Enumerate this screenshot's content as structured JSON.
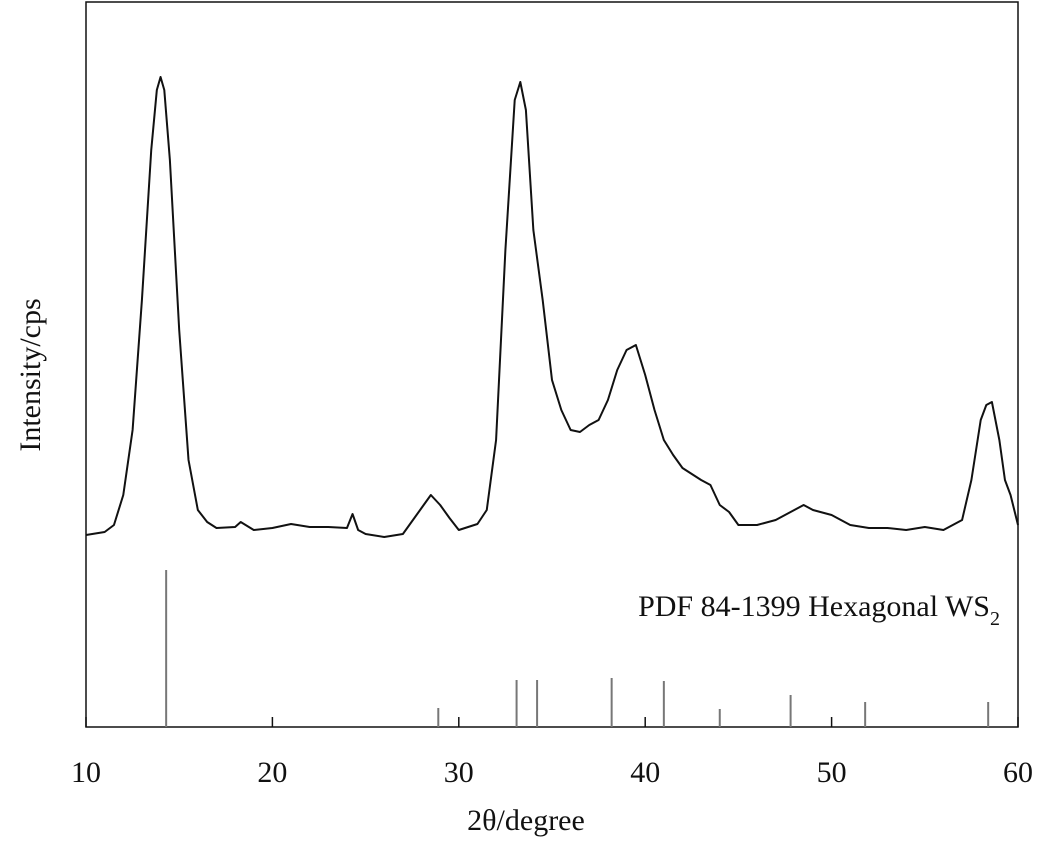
{
  "chart_data": {
    "type": "line",
    "xlabel": "2θ/degree",
    "ylabel": "Intensity/cps",
    "annotation": {
      "text": "PDF 84-1399 Hexagonal WS",
      "subscript": "2"
    },
    "xlim": [
      10,
      60
    ],
    "xticks": [
      10,
      20,
      30,
      40,
      50,
      60
    ],
    "ylim": [
      0,
      725
    ],
    "series": [
      {
        "type": "line",
        "color": "#111111",
        "x": [
          10,
          11,
          11.5,
          12,
          12.5,
          13,
          13.5,
          13.8,
          14,
          14.2,
          14.5,
          15,
          15.5,
          16,
          16.5,
          17,
          18,
          18.3,
          19,
          20,
          21,
          22,
          23,
          24,
          24.3,
          24.6,
          25,
          26,
          27,
          28,
          28.5,
          29,
          29.5,
          30,
          31,
          31.5,
          32,
          32.5,
          33,
          33.3,
          33.6,
          34,
          34.5,
          35,
          35.5,
          36,
          36.5,
          37,
          37.5,
          38,
          38.5,
          39,
          39.5,
          40,
          40.5,
          41,
          41.5,
          42,
          43,
          43.5,
          44,
          44.5,
          45,
          46,
          47,
          48,
          48.5,
          49,
          50,
          51,
          52,
          53,
          54,
          55,
          56,
          57,
          57.5,
          58,
          58.3,
          58.6,
          59,
          59.3,
          59.6,
          60
        ],
        "values": [
          192,
          195,
          202,
          232,
          297,
          427,
          577,
          637,
          650,
          637,
          567,
          397,
          267,
          217,
          205,
          199,
          200,
          205,
          197,
          199,
          203,
          200,
          200,
          199,
          213,
          197,
          193,
          190,
          193,
          219,
          232,
          222,
          209,
          197,
          203,
          217,
          287,
          477,
          627,
          645,
          617,
          497,
          427,
          347,
          317,
          297,
          295,
          302,
          307,
          327,
          357,
          377,
          382,
          352,
          317,
          287,
          272,
          259,
          247,
          242,
          222,
          215,
          202,
          202,
          207,
          217,
          222,
          217,
          212,
          202,
          199,
          199,
          197,
          200,
          197,
          207,
          247,
          307,
          322,
          325,
          287,
          247,
          232,
          202
        ]
      },
      {
        "type": "stick",
        "color": "#777777",
        "x": [
          14.3,
          28.9,
          33.1,
          34.2,
          38.2,
          41.0,
          44.0,
          47.8,
          51.8,
          58.4
        ],
        "values": [
          157,
          19,
          47,
          47,
          49,
          46,
          18,
          32,
          25,
          25
        ]
      }
    ]
  }
}
